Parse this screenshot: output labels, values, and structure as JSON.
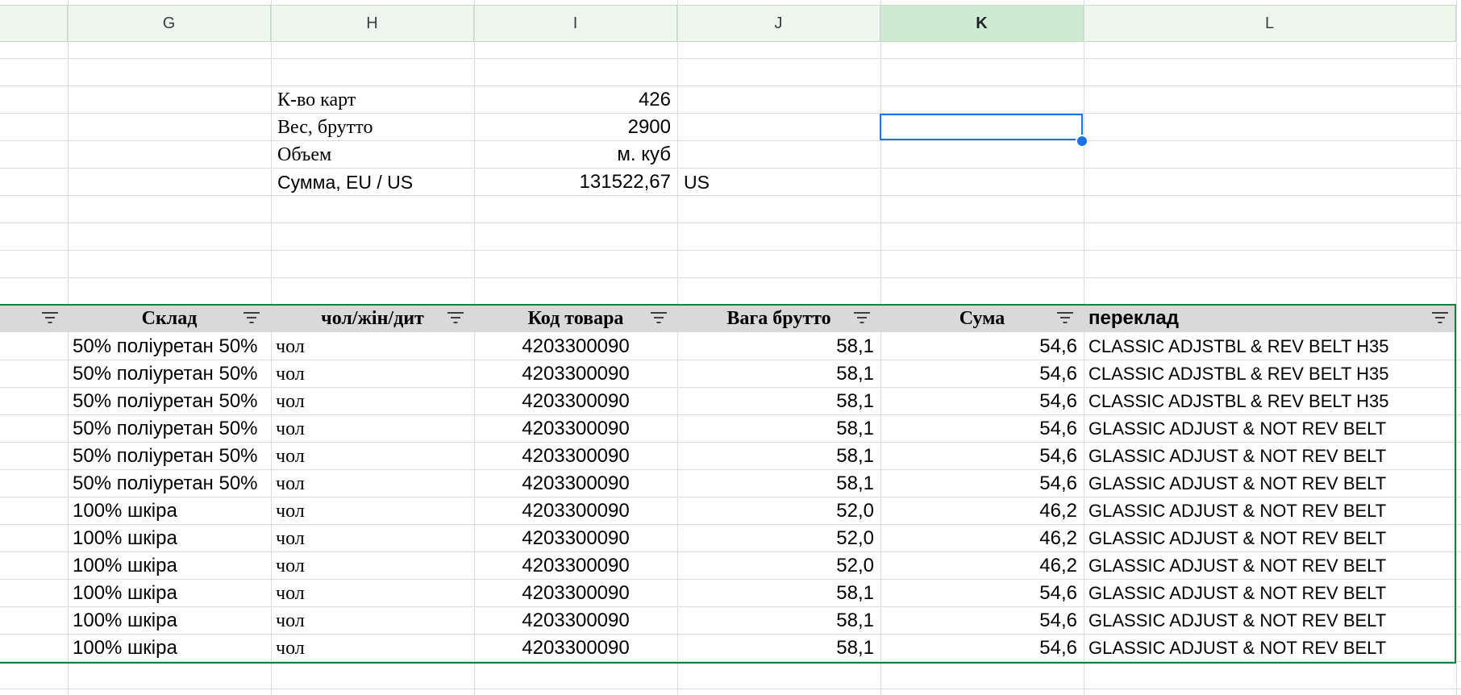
{
  "columns": [
    "G",
    "H",
    "I",
    "J",
    "K",
    "L"
  ],
  "selected_column": "K",
  "summary": [
    {
      "label": "К-во карт",
      "value": "426",
      "extra": ""
    },
    {
      "label": "Вес, брутто",
      "value": "2900",
      "extra": ""
    },
    {
      "label": "Объем",
      "value": "м. куб",
      "extra": ""
    },
    {
      "label": "Сумма, EU / US",
      "value": "131522,67",
      "extra": "US"
    }
  ],
  "table_headers": {
    "sklad": "Склад",
    "gender": "чол/жін/дит",
    "code": "Код товара",
    "weight": "Вага брутто",
    "sum": "Сума",
    "translation": "переклад"
  },
  "rows": [
    {
      "sklad": "50% поліуретан 50%",
      "gender": "чол",
      "code": "4203300090",
      "weight": "58,1",
      "sum": "54,6",
      "translation": "CLASSIC ADJSTBL & REV BELT H35"
    },
    {
      "sklad": "50% поліуретан 50%",
      "gender": "чол",
      "code": "4203300090",
      "weight": "58,1",
      "sum": "54,6",
      "translation": "CLASSIC ADJSTBL & REV BELT H35"
    },
    {
      "sklad": "50% поліуретан 50%",
      "gender": "чол",
      "code": "4203300090",
      "weight": "58,1",
      "sum": "54,6",
      "translation": "CLASSIC ADJSTBL & REV BELT H35"
    },
    {
      "sklad": "50% поліуретан 50%",
      "gender": "чол",
      "code": "4203300090",
      "weight": "58,1",
      "sum": "54,6",
      "translation": "GLASSIC ADJUST & NOT REV BELT"
    },
    {
      "sklad": "50% поліуретан 50%",
      "gender": "чол",
      "code": "4203300090",
      "weight": "58,1",
      "sum": "54,6",
      "translation": "GLASSIC ADJUST & NOT REV BELT"
    },
    {
      "sklad": "50% поліуретан 50%",
      "gender": "чол",
      "code": "4203300090",
      "weight": "58,1",
      "sum": "54,6",
      "translation": "GLASSIC ADJUST & NOT REV BELT"
    },
    {
      "sklad": "100% шкіра",
      "gender": "чол",
      "code": "4203300090",
      "weight": "52,0",
      "sum": "46,2",
      "translation": "GLASSIC ADJUST & NOT REV BELT"
    },
    {
      "sklad": "100% шкіра",
      "gender": "чол",
      "code": "4203300090",
      "weight": "52,0",
      "sum": "46,2",
      "translation": "GLASSIC ADJUST & NOT REV BELT"
    },
    {
      "sklad": "100% шкіра",
      "gender": "чол",
      "code": "4203300090",
      "weight": "52,0",
      "sum": "46,2",
      "translation": "GLASSIC ADJUST & NOT REV BELT"
    },
    {
      "sklad": "100% шкіра",
      "gender": "чол",
      "code": "4203300090",
      "weight": "58,1",
      "sum": "54,6",
      "translation": "GLASSIC ADJUST & NOT REV BELT"
    },
    {
      "sklad": "100% шкіра",
      "gender": "чол",
      "code": "4203300090",
      "weight": "58,1",
      "sum": "54,6",
      "translation": "GLASSIC ADJUST & NOT REV BELT"
    },
    {
      "sklad": "100% шкіра",
      "gender": "чол",
      "code": "4203300090",
      "weight": "58,1",
      "sum": "54,6",
      "translation": "GLASSIC ADJUST & NOT REV BELT"
    }
  ],
  "colors": {
    "selection": "#1a73e8",
    "header_band": "#d9d9d9",
    "filter_border": "#188038"
  }
}
